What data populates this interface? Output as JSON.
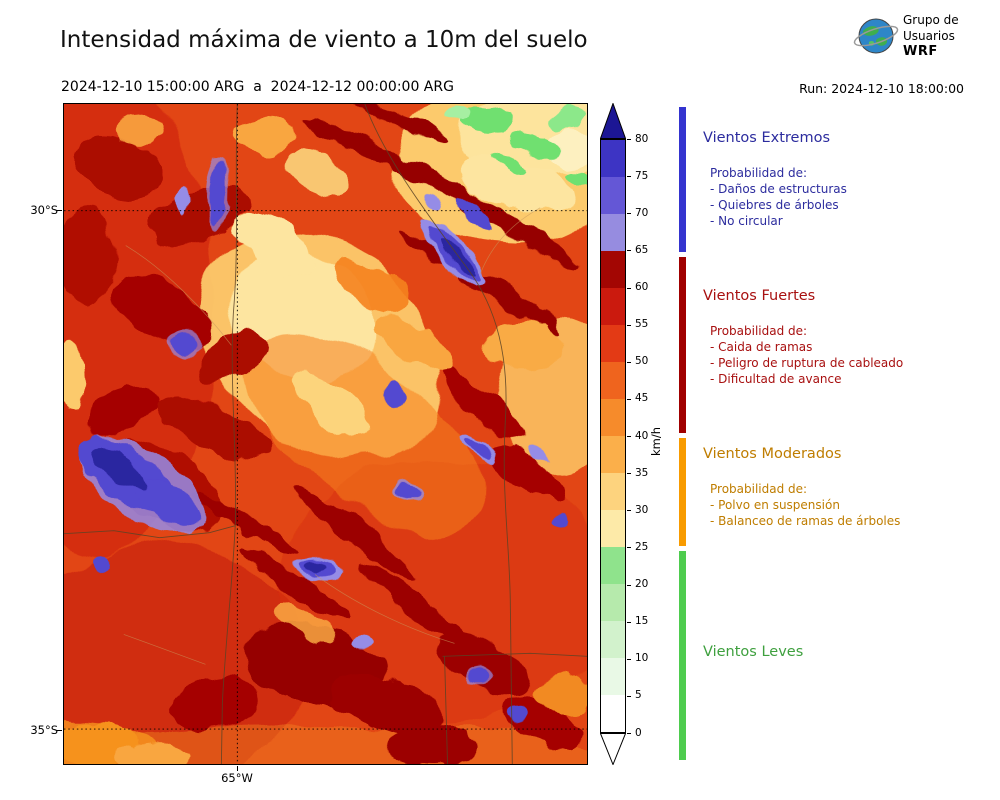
{
  "header": {
    "title": "Intensidad máxima de viento a 10m del suelo",
    "date_range": "2024-12-10 15:00:00 ARG  a  2024-12-12 00:00:00 ARG",
    "run_label": "Run: 2024-12-10 18:00:00",
    "logo": {
      "line1": "Grupo de",
      "line2": "Usuarios",
      "line3": "WRF"
    }
  },
  "map": {
    "lat_tick_30": "30°S",
    "lat_tick_35": "35°S",
    "lon_tick_65": "65°W"
  },
  "colorbar": {
    "unit": "km/h",
    "vmin": 0,
    "vmax": 80,
    "ticks": [
      0,
      5,
      10,
      15,
      20,
      25,
      30,
      35,
      40,
      45,
      50,
      55,
      60,
      65,
      70,
      75,
      80
    ],
    "segment_colors": [
      "#ffffff",
      "#e9f9e6",
      "#d2f2cc",
      "#b6eaac",
      "#8fe38c",
      "#fdeaa8",
      "#fdd37e",
      "#fbaf4a",
      "#f68b2b",
      "#ef641e",
      "#e33a15",
      "#cb1a0e",
      "#a30603",
      "#968ce0",
      "#6457d6",
      "#3d34c4"
    ],
    "under_color": "#ffffff",
    "over_color": "#1c1694"
  },
  "legend": {
    "sections": [
      {
        "title": "Vientos Extremos",
        "text_color": "#2c2c9e",
        "bar_color": "#3434cf",
        "subtitle": "Probabilidad de:",
        "items": [
          "- Daños de estructuras",
          "- Quiebres de árboles",
          "- No circular"
        ],
        "range_kmh": [
          65,
          80
        ]
      },
      {
        "title": "Vientos Fuertes",
        "text_color": "#a81010",
        "bar_color": "#a00000",
        "subtitle": "Probabilidad de:",
        "items": [
          "- Caida de ramas",
          "- Peligro de ruptura de cableado",
          "- Dificultad de avance"
        ],
        "range_kmh": [
          40,
          65
        ]
      },
      {
        "title": "Vientos Moderados",
        "text_color": "#bf7d00",
        "bar_color": "#f89b00",
        "subtitle": "Probabilidad de:",
        "items": [
          "- Polvo en suspensión",
          "- Balanceo de ramas de árboles"
        ],
        "range_kmh": [
          25,
          40
        ]
      },
      {
        "title": "Vientos Leves",
        "text_color": "#3fa03f",
        "bar_color": "#4ecc4e",
        "subtitle": "",
        "items": [],
        "range_kmh": [
          0,
          25
        ]
      }
    ]
  }
}
